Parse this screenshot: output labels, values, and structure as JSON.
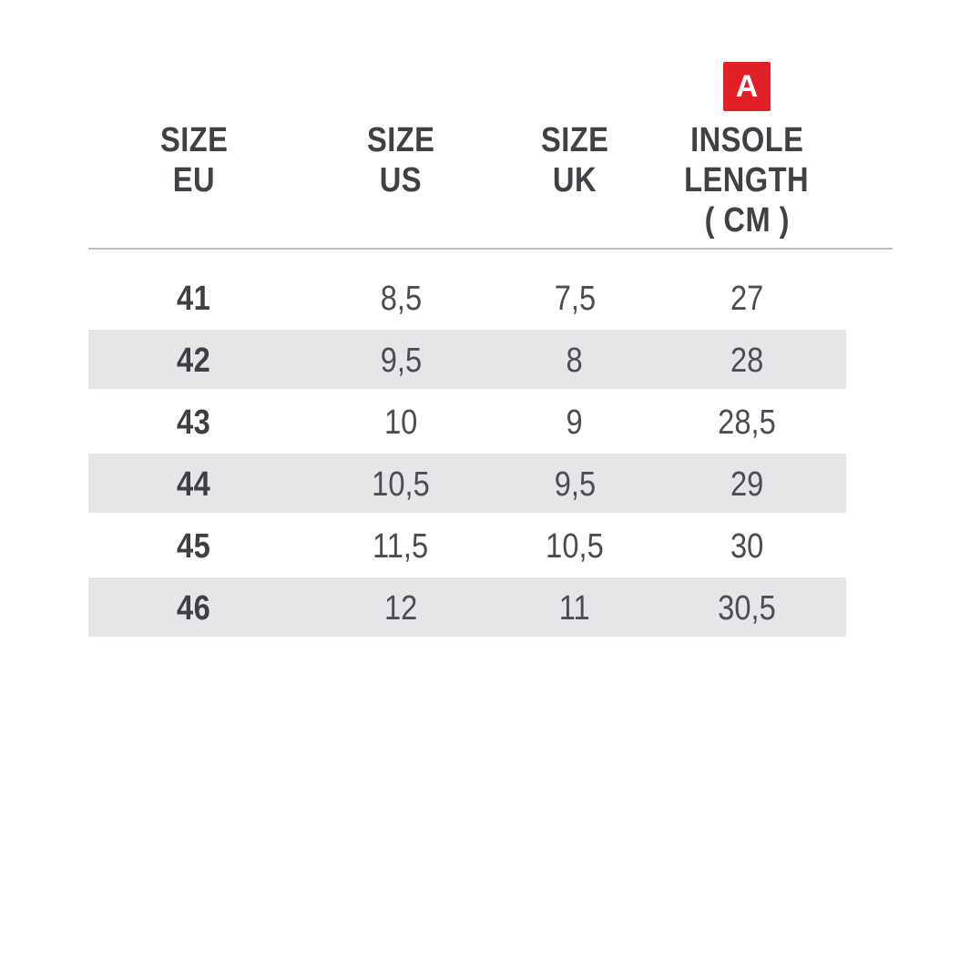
{
  "badge": {
    "label": "A"
  },
  "header": {
    "cols": [
      {
        "lines": [
          "SIZE",
          "EU"
        ]
      },
      {
        "lines": [
          "SIZE",
          "US"
        ]
      },
      {
        "lines": [
          "SIZE",
          "UK"
        ]
      },
      {
        "lines": [
          "INSOLE",
          "LENGTH",
          "( CM )"
        ]
      }
    ]
  },
  "chart_data": {
    "type": "table",
    "columns": [
      "SIZE EU",
      "SIZE US",
      "SIZE UK",
      "INSOLE LENGTH ( CM )"
    ],
    "insole_column_badge": "A",
    "rows": [
      [
        "41",
        "8,5",
        "7,5",
        "27"
      ],
      [
        "42",
        "9,5",
        "8",
        "28"
      ],
      [
        "43",
        "10",
        "9",
        "28,5"
      ],
      [
        "44",
        "10,5",
        "9,5",
        "29"
      ],
      [
        "45",
        "11,5",
        "10,5",
        "30"
      ],
      [
        "46",
        "12",
        "11",
        "30,5"
      ]
    ],
    "striped_row_labels": [
      "42",
      "44",
      "46"
    ],
    "layout": {
      "legend": "none",
      "grid": "zebra-stripes",
      "header_divider": true
    }
  },
  "colors": {
    "badge_red": "#e11f26",
    "header_text": "#3f4145",
    "value_text": "#4b4d52",
    "eu_value_text": "#3e3f43",
    "stripe": "#e6e6e8",
    "divider": "#bcbcbe",
    "background": "#ffffff"
  }
}
